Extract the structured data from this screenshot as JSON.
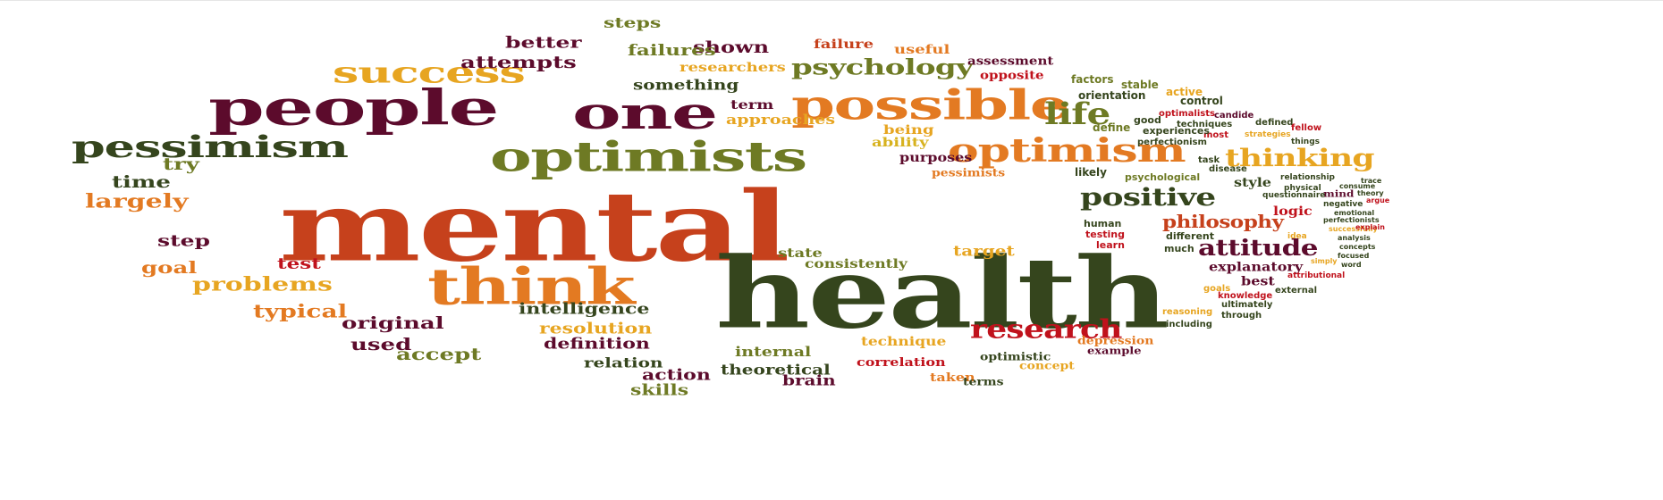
{
  "palette": {
    "dark_red": "#5c0b2c",
    "red": "#c6411c",
    "orange": "#e37a22",
    "gold": "#e7a521",
    "olive": "#6e7a24",
    "dark_green": "#35451d",
    "crimson": "#c0121c",
    "yellow": "#d7b21e"
  },
  "words": {
    "mental": "mental",
    "health": "health",
    "people": "people",
    "one": "one",
    "possible": "possible",
    "optimists": "optimists",
    "optimism": "optimism",
    "pessimism": "pessimism",
    "success": "success",
    "think": "think",
    "thinking": "thinking",
    "positive": "positive",
    "research": "research",
    "attitude": "attitude",
    "philosophy": "philosophy",
    "life": "life",
    "psychology": "psychology",
    "better": "better",
    "attempts": "attempts",
    "steps": "steps",
    "shown": "shown",
    "failures": "failures",
    "failure": "failure",
    "useful": "useful",
    "assessment": "assessment",
    "opposite": "opposite",
    "researchers": "researchers",
    "something": "something",
    "term": "term",
    "approaches": "approaches",
    "being": "being",
    "ability": "ability",
    "purposes": "purposes",
    "pessimists": "pessimists",
    "try": "try",
    "time": "time",
    "largely": "largely",
    "step": "step",
    "goal": "goal",
    "test": "test",
    "problems": "problems",
    "typical": "typical",
    "original": "original",
    "intelligence": "intelligence",
    "used": "used",
    "accept": "accept",
    "resolution": "resolution",
    "definition": "definition",
    "relation": "relation",
    "action": "action",
    "skills": "skills",
    "internal": "internal",
    "theoretical": "theoretical",
    "brain": "brain",
    "technique": "technique",
    "correlation": "correlation",
    "taken": "taken",
    "terms": "terms",
    "optimistic": "optimistic",
    "concept": "concept",
    "depression": "depression",
    "example": "example",
    "state": "state",
    "consistently": "consistently",
    "target": "target",
    "factors": "factors",
    "stable": "stable",
    "active": "active",
    "control": "control",
    "orientation": "orientation",
    "most": "most",
    "optimalists": "optimalists",
    "candide": "candide",
    "defined": "defined",
    "fellow": "fellow",
    "good": "good",
    "techniques": "techniques",
    "define": "define",
    "experiences": "experiences",
    "strategies": "strategies",
    "perfectionism": "perfectionism",
    "things": "things",
    "task": "task",
    "disease": "disease",
    "likely": "likely",
    "psychological": "psychological",
    "relationship": "relationship",
    "trace": "trace",
    "consume": "consume",
    "style": "style",
    "physical": "physical",
    "mind": "mind",
    "theory": "theory",
    "questionnaire": "questionnaire",
    "argue": "argue",
    "logic": "logic",
    "negative": "negative",
    "emotional": "emotional",
    "perfectionists": "perfectionists",
    "human": "human",
    "testing": "testing",
    "learn": "learn",
    "different": "different",
    "much": "much",
    "successfully": "successfully",
    "explain": "explain",
    "idea": "idea",
    "analysis": "analysis",
    "concepts": "concepts",
    "focused": "focused",
    "simply": "simply",
    "word": "word",
    "explanatory": "explanatory",
    "best": "best",
    "attributional": "attributional",
    "goals": "goals",
    "knowledge": "knowledge",
    "external": "external",
    "ultimately": "ultimately",
    "reasoning": "reasoning",
    "through": "through",
    "including": "including"
  }
}
